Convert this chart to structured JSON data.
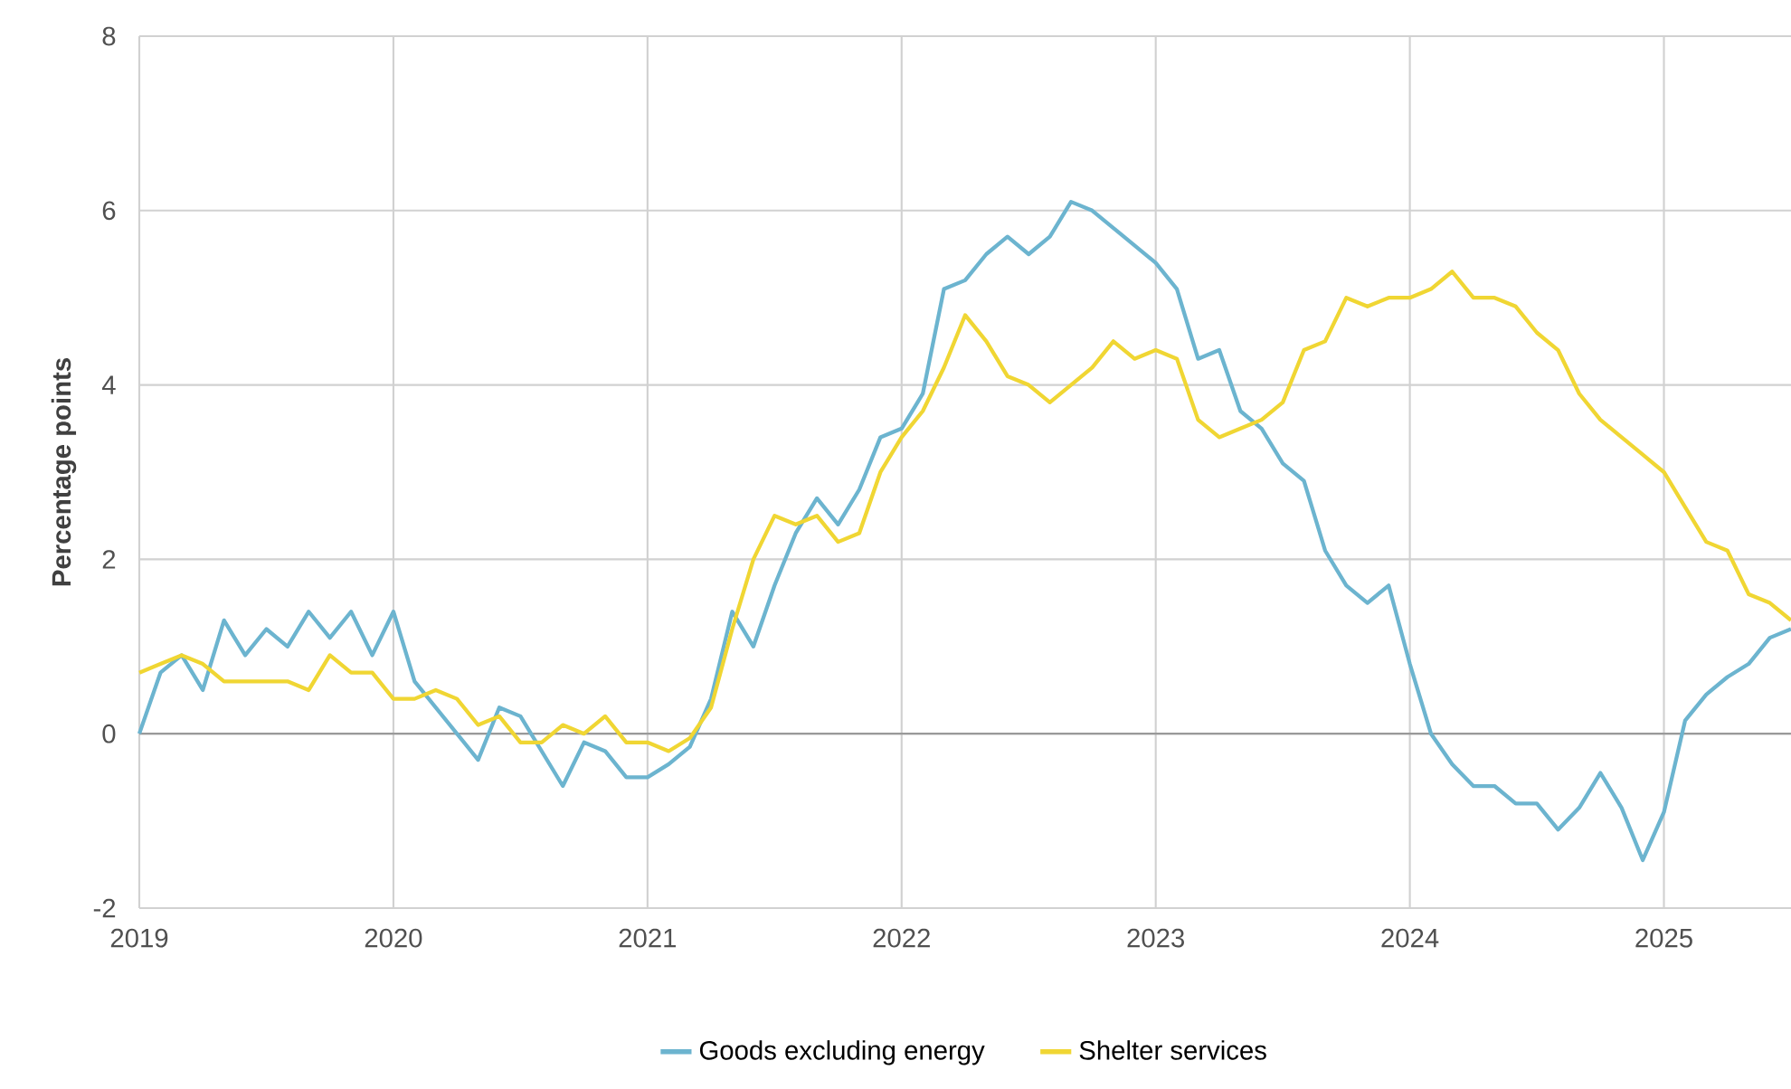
{
  "chart_data": {
    "type": "line",
    "ylabel": "Percentage points",
    "x": [
      "2019-01",
      "2019-02",
      "2019-03",
      "2019-04",
      "2019-05",
      "2019-06",
      "2019-07",
      "2019-08",
      "2019-09",
      "2019-10",
      "2019-11",
      "2019-12",
      "2020-01",
      "2020-02",
      "2020-03",
      "2020-04",
      "2020-05",
      "2020-06",
      "2020-07",
      "2020-08",
      "2020-09",
      "2020-10",
      "2020-11",
      "2020-12",
      "2021-01",
      "2021-02",
      "2021-03",
      "2021-04",
      "2021-05",
      "2021-06",
      "2021-07",
      "2021-08",
      "2021-09",
      "2021-10",
      "2021-11",
      "2021-12",
      "2022-01",
      "2022-02",
      "2022-03",
      "2022-04",
      "2022-05",
      "2022-06",
      "2022-07",
      "2022-08",
      "2022-09",
      "2022-10",
      "2022-11",
      "2022-12",
      "2023-01",
      "2023-02",
      "2023-03",
      "2023-04",
      "2023-05",
      "2023-06",
      "2023-07",
      "2023-08",
      "2023-09",
      "2023-10",
      "2023-11",
      "2023-12",
      "2024-01",
      "2024-02",
      "2024-03",
      "2024-04",
      "2024-05",
      "2024-06",
      "2024-07",
      "2024-08",
      "2024-09",
      "2024-10",
      "2024-11",
      "2024-12",
      "2025-01",
      "2025-02",
      "2025-03",
      "2025-04",
      "2025-05",
      "2025-06",
      "2025-07"
    ],
    "series": [
      {
        "name": "Goods excluding energy",
        "color": "#6cb4cf",
        "values": [
          0.0,
          0.7,
          0.9,
          0.5,
          1.3,
          0.9,
          1.2,
          1.0,
          1.4,
          1.1,
          1.4,
          0.9,
          1.4,
          0.6,
          0.3,
          0.0,
          -0.3,
          0.3,
          0.2,
          -0.2,
          -0.6,
          -0.1,
          -0.2,
          -0.5,
          -0.5,
          -0.35,
          -0.15,
          0.4,
          1.4,
          1.0,
          1.7,
          2.3,
          2.7,
          2.4,
          2.8,
          3.4,
          3.5,
          3.9,
          5.1,
          5.2,
          5.5,
          5.7,
          5.5,
          5.7,
          6.1,
          6.0,
          5.8,
          5.6,
          5.4,
          5.1,
          4.3,
          4.4,
          3.7,
          3.5,
          3.1,
          2.9,
          2.1,
          1.7,
          1.5,
          1.7,
          0.8,
          0.0,
          -0.35,
          -0.6,
          -0.6,
          -0.8,
          -0.8,
          -1.1,
          -0.85,
          -0.45,
          -0.85,
          -1.45,
          -0.9,
          0.15,
          0.45,
          0.65,
          0.8,
          1.1,
          1.2
        ]
      },
      {
        "name": "Shelter services",
        "color": "#f0d633",
        "values": [
          0.7,
          0.8,
          0.9,
          0.8,
          0.6,
          0.6,
          0.6,
          0.6,
          0.5,
          0.9,
          0.7,
          0.7,
          0.4,
          0.4,
          0.5,
          0.4,
          0.1,
          0.2,
          -0.1,
          -0.1,
          0.1,
          0.0,
          0.2,
          -0.1,
          -0.1,
          -0.2,
          -0.05,
          0.3,
          1.2,
          2.0,
          2.5,
          2.4,
          2.5,
          2.2,
          2.3,
          3.0,
          3.4,
          3.7,
          4.2,
          4.8,
          4.5,
          4.1,
          4.0,
          3.8,
          4.0,
          4.2,
          4.5,
          4.3,
          4.4,
          4.3,
          3.6,
          3.4,
          3.5,
          3.6,
          3.8,
          4.4,
          4.5,
          5.0,
          4.9,
          5.0,
          5.0,
          5.1,
          5.3,
          5.0,
          5.0,
          4.9,
          4.6,
          4.4,
          3.9,
          3.6,
          3.4,
          3.2,
          3.0,
          2.6,
          2.2,
          2.1,
          1.6,
          1.5,
          1.3
        ]
      }
    ],
    "xlim": [
      "2019-01",
      "2025-07"
    ],
    "xticks": [
      "2019",
      "2020",
      "2021",
      "2022",
      "2023",
      "2024",
      "2025"
    ],
    "ylim": [
      -2,
      8
    ],
    "yticks": [
      -2,
      0,
      2,
      4,
      6,
      8
    ],
    "ref_lines": [
      {
        "axis": "y",
        "value": 0,
        "color": "#999999"
      }
    ],
    "grid": true,
    "legend": "bottom",
    "marker": "none",
    "line_style": "solid"
  }
}
